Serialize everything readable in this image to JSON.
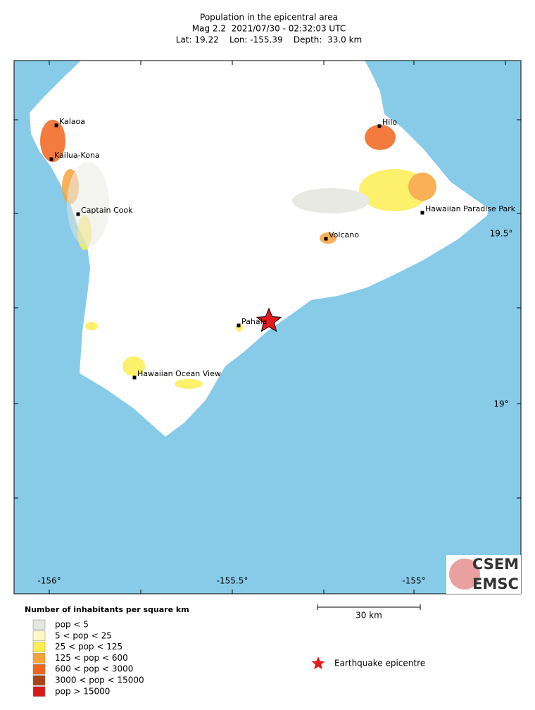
{
  "header": {
    "title": "Population in the epicentral area",
    "line2": "Mag 2.2  2021/07/30 - 02:32:03 UTC",
    "line3": "Lat: 19.22    Lon: -155.39    Depth:  33.0 km"
  },
  "map": {
    "x_labels": [
      "-156°",
      "-155.5°",
      "-155°"
    ],
    "y_labels": [
      "19.5°",
      "19°"
    ],
    "places": [
      "Kalaoa",
      "Kailua-Kona",
      "Captain Cook",
      "Hilo",
      "Hawaiian Paradise Park",
      "Volcano",
      "Pahala",
      "Hawaiian Ocean View"
    ],
    "scale_label": "30 km",
    "logo": [
      "CSEM",
      "EMSC"
    ]
  },
  "legend": {
    "title": "Number of inhabitants per square km",
    "items": [
      {
        "label": "pop < 5",
        "color": "#e6e6e0"
      },
      {
        "label": "5 < pop < 25",
        "color": "#fff9c8"
      },
      {
        "label": "25 < pop < 125",
        "color": "#fdee52"
      },
      {
        "label": "125 < pop < 600",
        "color": "#f8a33a"
      },
      {
        "label": "600 < pop < 3000",
        "color": "#f0641c"
      },
      {
        "label": "3000 < pop < 15000",
        "color": "#a84316"
      },
      {
        "label": "pop > 15000",
        "color": "#d7191c"
      }
    ],
    "epicentre": "Earthquake epicentre"
  }
}
